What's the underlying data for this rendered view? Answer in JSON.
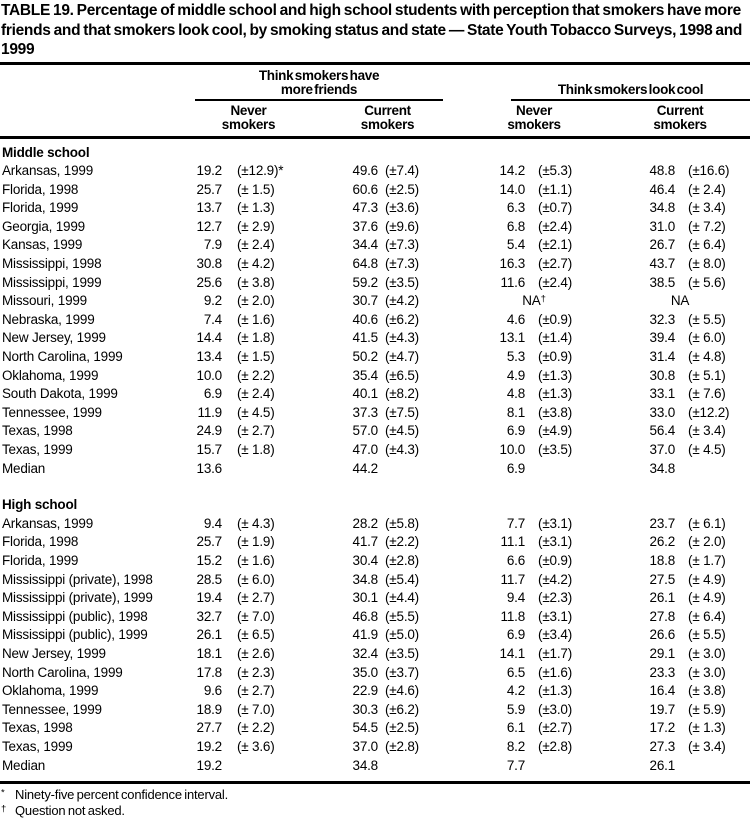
{
  "title": "TABLE 19.  Percentage of middle school and high school students with perception that smokers have more friends and that smokers look cool, by smoking status and state — State Youth Tobacco Surveys, 1998 and 1999",
  "table": {
    "group_headers": [
      {
        "label": "Think smokers have\nmore friends"
      },
      {
        "label": "Think smokers look cool"
      }
    ],
    "col_headers": [
      "Never\nsmokers",
      "Current\nsmokers",
      "Never\nsmokers",
      "Current\nsmokers"
    ],
    "sections": [
      {
        "label": "Middle school",
        "rows": [
          {
            "state": "Arkansas, 1999",
            "cells": [
              [
                "19.2",
                "(±12.9)*"
              ],
              [
                "49.6",
                "(±7.4)"
              ],
              [
                "14.2",
                "(±5.3)"
              ],
              [
                "48.8",
                "(±16.6)"
              ]
            ]
          },
          {
            "state": "Florida, 1998",
            "cells": [
              [
                "25.7",
                "(± 1.5)"
              ],
              [
                "60.6",
                "(±2.5)"
              ],
              [
                "14.0",
                "(±1.1)"
              ],
              [
                "46.4",
                "(± 2.4)"
              ]
            ]
          },
          {
            "state": "Florida, 1999",
            "cells": [
              [
                "13.7",
                "(± 1.3)"
              ],
              [
                "47.3",
                "(±3.6)"
              ],
              [
                "6.3",
                "(±0.7)"
              ],
              [
                "34.8",
                "(± 3.4)"
              ]
            ]
          },
          {
            "state": "Georgia, 1999",
            "cells": [
              [
                "12.7",
                "(± 2.9)"
              ],
              [
                "37.6",
                "(±9.6)"
              ],
              [
                "6.8",
                "(±2.4)"
              ],
              [
                "31.0",
                "(± 7.2)"
              ]
            ]
          },
          {
            "state": "Kansas, 1999",
            "cells": [
              [
                "7.9",
                "(± 2.4)"
              ],
              [
                "34.4",
                "(±7.3)"
              ],
              [
                "5.4",
                "(±2.1)"
              ],
              [
                "26.7",
                "(± 6.4)"
              ]
            ]
          },
          {
            "state": "Mississippi, 1998",
            "cells": [
              [
                "30.8",
                "(± 4.2)"
              ],
              [
                "64.8",
                "(±7.3)"
              ],
              [
                "16.3",
                "(±2.7)"
              ],
              [
                "43.7",
                "(± 8.0)"
              ]
            ]
          },
          {
            "state": "Mississippi, 1999",
            "cells": [
              [
                "25.6",
                "(± 3.8)"
              ],
              [
                "59.2",
                "(±3.5)"
              ],
              [
                "11.6",
                "(±2.4)"
              ],
              [
                "38.5",
                "(± 5.6)"
              ]
            ]
          },
          {
            "state": "Missouri, 1999",
            "cells": [
              [
                "9.2",
                "(± 2.0)"
              ],
              [
                "30.7",
                "(±4.2)"
              ],
              [
                "NA†",
                null
              ],
              [
                "NA",
                null
              ]
            ]
          },
          {
            "state": "Nebraska, 1999",
            "cells": [
              [
                "7.4",
                "(± 1.6)"
              ],
              [
                "40.6",
                "(±6.2)"
              ],
              [
                "4.6",
                "(±0.9)"
              ],
              [
                "32.3",
                "(± 5.5)"
              ]
            ]
          },
          {
            "state": "New Jersey, 1999",
            "cells": [
              [
                "14.4",
                "(± 1.8)"
              ],
              [
                "41.5",
                "(±4.3)"
              ],
              [
                "13.1",
                "(±1.4)"
              ],
              [
                "39.4",
                "(± 6.0)"
              ]
            ]
          },
          {
            "state": "North Carolina, 1999",
            "cells": [
              [
                "13.4",
                "(± 1.5)"
              ],
              [
                "50.2",
                "(±4.7)"
              ],
              [
                "5.3",
                "(±0.9)"
              ],
              [
                "31.4",
                "(± 4.8)"
              ]
            ]
          },
          {
            "state": "Oklahoma, 1999",
            "cells": [
              [
                "10.0",
                "(± 2.2)"
              ],
              [
                "35.4",
                "(±6.5)"
              ],
              [
                "4.9",
                "(±1.3)"
              ],
              [
                "30.8",
                "(± 5.1)"
              ]
            ]
          },
          {
            "state": "South Dakota, 1999",
            "cells": [
              [
                "6.9",
                "(± 2.4)"
              ],
              [
                "40.1",
                "(±8.2)"
              ],
              [
                "4.8",
                "(±1.3)"
              ],
              [
                "33.1",
                "(± 7.6)"
              ]
            ]
          },
          {
            "state": "Tennessee, 1999",
            "cells": [
              [
                "11.9",
                "(± 4.5)"
              ],
              [
                "37.3",
                "(±7.5)"
              ],
              [
                "8.1",
                "(±3.8)"
              ],
              [
                "33.0",
                "(±12.2)"
              ]
            ]
          },
          {
            "state": "Texas, 1998",
            "cells": [
              [
                "24.9",
                "(± 2.7)"
              ],
              [
                "57.0",
                "(±4.5)"
              ],
              [
                "6.9",
                "(±4.9)"
              ],
              [
                "56.4",
                "(± 3.4)"
              ]
            ]
          },
          {
            "state": "Texas, 1999",
            "cells": [
              [
                "15.7",
                "(± 1.8)"
              ],
              [
                "47.0",
                "(±4.3)"
              ],
              [
                "10.0",
                "(±3.5)"
              ],
              [
                "37.0",
                "(± 4.5)"
              ]
            ]
          },
          {
            "state": "Median",
            "cells": [
              [
                "13.6",
                ""
              ],
              [
                "44.2",
                ""
              ],
              [
                "6.9",
                ""
              ],
              [
                "34.8",
                ""
              ]
            ]
          }
        ]
      },
      {
        "label": "High school",
        "rows": [
          {
            "state": "Arkansas, 1999",
            "cells": [
              [
                "9.4",
                "(± 4.3)"
              ],
              [
                "28.2",
                "(±5.8)"
              ],
              [
                "7.7",
                "(±3.1)"
              ],
              [
                "23.7",
                "(± 6.1)"
              ]
            ]
          },
          {
            "state": "Florida, 1998",
            "cells": [
              [
                "25.7",
                "(± 1.9)"
              ],
              [
                "41.7",
                "(±2.2)"
              ],
              [
                "11.1",
                "(±3.1)"
              ],
              [
                "26.2",
                "(± 2.0)"
              ]
            ]
          },
          {
            "state": "Florida, 1999",
            "cells": [
              [
                "15.2",
                "(± 1.6)"
              ],
              [
                "30.4",
                "(±2.8)"
              ],
              [
                "6.6",
                "(±0.9)"
              ],
              [
                "18.8",
                "(± 1.7)"
              ]
            ]
          },
          {
            "state": "Mississippi (private), 1998",
            "cells": [
              [
                "28.5",
                "(± 6.0)"
              ],
              [
                "34.8",
                "(±5.4)"
              ],
              [
                "11.7",
                "(±4.2)"
              ],
              [
                "27.5",
                "(± 4.9)"
              ]
            ]
          },
          {
            "state": "Mississippi (private), 1999",
            "cells": [
              [
                "19.4",
                "(± 2.7)"
              ],
              [
                "30.1",
                "(±4.4)"
              ],
              [
                "9.4",
                "(±2.3)"
              ],
              [
                "26.1",
                "(± 4.9)"
              ]
            ]
          },
          {
            "state": "Mississippi (public), 1998",
            "cells": [
              [
                "32.7",
                "(± 7.0)"
              ],
              [
                "46.8",
                "(±5.5)"
              ],
              [
                "11.8",
                "(±3.1)"
              ],
              [
                "27.8",
                "(± 6.4)"
              ]
            ]
          },
          {
            "state": "Mississippi (public), 1999",
            "cells": [
              [
                "26.1",
                "(± 6.5)"
              ],
              [
                "41.9",
                "(±5.0)"
              ],
              [
                "6.9",
                "(±3.4)"
              ],
              [
                "26.6",
                "(± 5.5)"
              ]
            ]
          },
          {
            "state": "New Jersey, 1999",
            "cells": [
              [
                "18.1",
                "(± 2.6)"
              ],
              [
                "32.4",
                "(±3.5)"
              ],
              [
                "14.1",
                "(±1.7)"
              ],
              [
                "29.1",
                "(± 3.0)"
              ]
            ]
          },
          {
            "state": "North Carolina, 1999",
            "cells": [
              [
                "17.8",
                "(± 2.3)"
              ],
              [
                "35.0",
                "(±3.7)"
              ],
              [
                "6.5",
                "(±1.6)"
              ],
              [
                "23.3",
                "(± 3.0)"
              ]
            ]
          },
          {
            "state": "Oklahoma, 1999",
            "cells": [
              [
                "9.6",
                "(± 2.7)"
              ],
              [
                "22.9",
                "(±4.6)"
              ],
              [
                "4.2",
                "(±1.3)"
              ],
              [
                "16.4",
                "(± 3.8)"
              ]
            ]
          },
          {
            "state": "Tennessee, 1999",
            "cells": [
              [
                "18.9",
                "(± 7.0)"
              ],
              [
                "30.3",
                "(±6.2)"
              ],
              [
                "5.9",
                "(±3.0)"
              ],
              [
                "19.7",
                "(± 5.9)"
              ]
            ]
          },
          {
            "state": "Texas, 1998",
            "cells": [
              [
                "27.7",
                "(± 2.2)"
              ],
              [
                "54.5",
                "(±2.5)"
              ],
              [
                "6.1",
                "(±2.7)"
              ],
              [
                "17.2",
                "(± 1.3)"
              ]
            ]
          },
          {
            "state": "Texas, 1999",
            "cells": [
              [
                "19.2",
                "(± 3.6)"
              ],
              [
                "37.0",
                "(±2.8)"
              ],
              [
                "8.2",
                "(±2.8)"
              ],
              [
                "27.3",
                "(± 3.4)"
              ]
            ]
          },
          {
            "state": "Median",
            "cells": [
              [
                "19.2",
                ""
              ],
              [
                "34.8",
                ""
              ],
              [
                "7.7",
                ""
              ],
              [
                "26.1",
                ""
              ]
            ]
          }
        ]
      }
    ]
  },
  "footnotes": [
    {
      "marker": "*",
      "text": "Ninety-five percent confidence interval."
    },
    {
      "marker": "†",
      "text": "Question not asked."
    }
  ]
}
